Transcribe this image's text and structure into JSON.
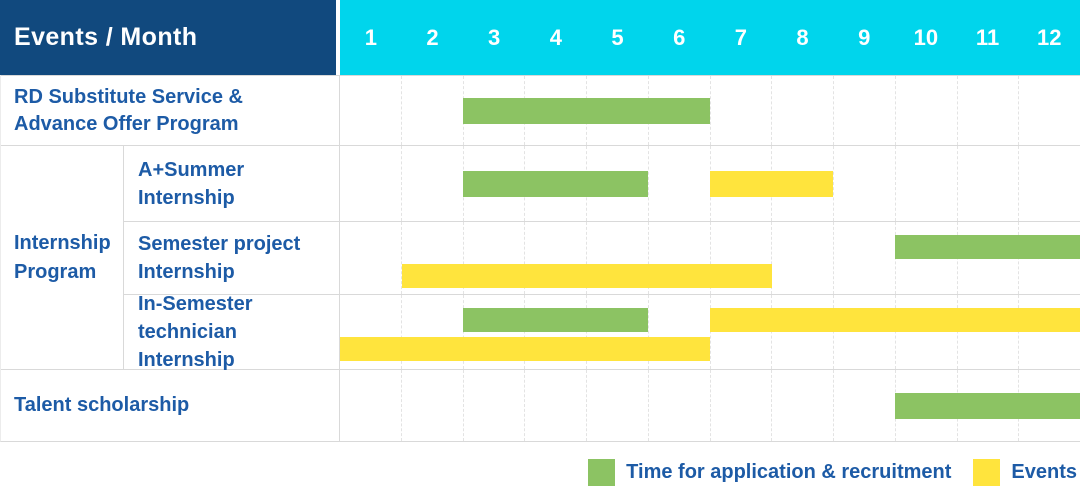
{
  "header": {
    "title": "Events / Month",
    "months": [
      "1",
      "2",
      "3",
      "4",
      "5",
      "6",
      "7",
      "8",
      "9",
      "10",
      "11",
      "12"
    ]
  },
  "colors": {
    "header_navy": "#11497E",
    "header_cyan": "#00D5EC",
    "application_green": "#8CC363",
    "event_yellow": "#FFE43D",
    "label_blue": "#1D5BA6"
  },
  "chart_data": {
    "type": "gantt",
    "x_unit": "month",
    "x_range": [
      1,
      12
    ],
    "title": "Events / Month",
    "grid": "on",
    "legend_position": "bottom-right",
    "rows": [
      {
        "label": "RD Substitute Service &\nAdvance Offer Program",
        "bars": [
          {
            "type": "application",
            "start_month": 3,
            "end_month": 6,
            "lane": "center"
          }
        ]
      },
      {
        "group": "Internship\nProgram",
        "label": "A+Summer\nInternship",
        "bars": [
          {
            "type": "application",
            "start_month": 3,
            "end_month": 5,
            "lane": "center"
          },
          {
            "type": "event",
            "start_month": 7,
            "end_month": 8,
            "lane": "center"
          }
        ]
      },
      {
        "label": "Semester project\nInternship",
        "bars": [
          {
            "type": "application",
            "start_month": 10,
            "end_month": 12,
            "lane": "top"
          },
          {
            "type": "event",
            "start_month": 2,
            "end_month": 7,
            "lane": "bottom"
          }
        ]
      },
      {
        "label": "In-Semester\ntechnician Internship",
        "bars": [
          {
            "type": "application",
            "start_month": 3,
            "end_month": 5,
            "lane": "top"
          },
          {
            "type": "event",
            "start_month": 7,
            "end_month": 12,
            "lane": "top"
          },
          {
            "type": "event",
            "start_month": 1,
            "end_month": 6,
            "lane": "bottom"
          }
        ]
      },
      {
        "label": "Talent scholarship",
        "bars": [
          {
            "type": "application",
            "start_month": 10,
            "end_month": 12,
            "lane": "center"
          }
        ]
      }
    ]
  },
  "legend": {
    "items": [
      {
        "type": "application",
        "label": "Time for application & recruitment",
        "color": "#8CC363"
      },
      {
        "type": "event",
        "label": "Events",
        "color": "#FFE43D"
      }
    ]
  }
}
